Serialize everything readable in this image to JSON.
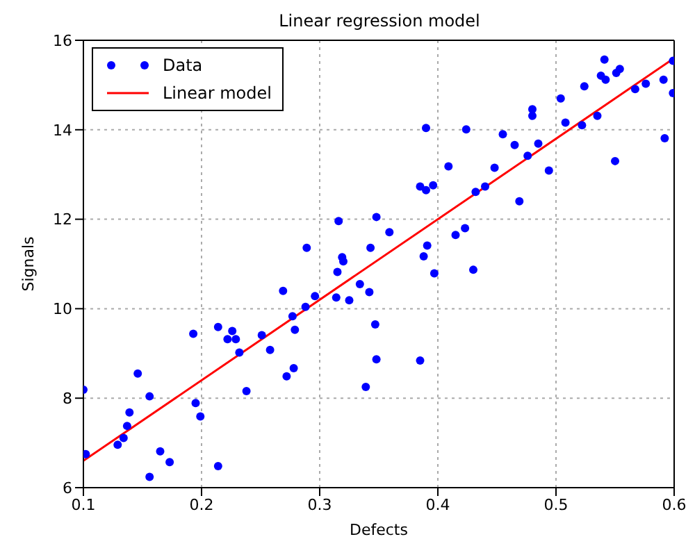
{
  "chart_data": {
    "type": "scatter",
    "title": "Linear regression model",
    "xlabel": "Defects",
    "ylabel": "Signals",
    "xlim": [
      0.1,
      0.6
    ],
    "xticks": [
      0.1,
      0.2,
      0.3,
      0.4,
      0.5,
      0.6
    ],
    "ylim": [
      6,
      16
    ],
    "yticks": [
      6,
      8,
      10,
      12,
      14,
      16
    ],
    "grid": true,
    "legend": "top left",
    "marker": "circle",
    "series": [
      {
        "name": "Data",
        "color": "#0000ff",
        "x": [
          0.1,
          0.102,
          0.129,
          0.134,
          0.137,
          0.139,
          0.146,
          0.156,
          0.156,
          0.165,
          0.173,
          0.193,
          0.195,
          0.199,
          0.214,
          0.214,
          0.222,
          0.226,
          0.229,
          0.232,
          0.238,
          0.251,
          0.258,
          0.269,
          0.272,
          0.277,
          0.278,
          0.279,
          0.288,
          0.289,
          0.296,
          0.316,
          0.314,
          0.315,
          0.319,
          0.32,
          0.325,
          0.334,
          0.339,
          0.342,
          0.343,
          0.347,
          0.348,
          0.385,
          0.385,
          0.39,
          0.396,
          0.39,
          0.409,
          0.424,
          0.348,
          0.359,
          0.388,
          0.391,
          0.397,
          0.415,
          0.423,
          0.43,
          0.432,
          0.44,
          0.448,
          0.455,
          0.465,
          0.469,
          0.476,
          0.48,
          0.48,
          0.485,
          0.494,
          0.504,
          0.508,
          0.522,
          0.524,
          0.535,
          0.538,
          0.541,
          0.542,
          0.55,
          0.551,
          0.554,
          0.567,
          0.576,
          0.591,
          0.592,
          0.599,
          0.599
        ],
        "values": [
          8.19,
          6.75,
          6.96,
          7.11,
          7.38,
          7.68,
          8.55,
          8.04,
          6.24,
          6.81,
          6.57,
          9.44,
          7.89,
          7.59,
          9.59,
          6.48,
          9.32,
          9.5,
          9.32,
          9.02,
          8.16,
          9.41,
          9.08,
          10.4,
          8.49,
          9.83,
          8.67,
          9.53,
          10.04,
          11.36,
          10.28,
          11.96,
          10.25,
          10.82,
          11.15,
          11.06,
          10.19,
          10.55,
          8.25,
          10.37,
          11.36,
          9.65,
          8.87,
          8.84,
          12.73,
          12.65,
          12.76,
          14.04,
          13.18,
          14.01,
          12.05,
          11.71,
          11.17,
          11.41,
          10.79,
          11.65,
          11.8,
          10.87,
          12.61,
          12.73,
          13.15,
          13.9,
          13.66,
          12.4,
          13.42,
          14.46,
          14.31,
          13.69,
          13.09,
          14.7,
          14.16,
          14.1,
          14.97,
          14.31,
          15.21,
          15.57,
          15.12,
          13.3,
          15.27,
          15.36,
          14.91,
          15.03,
          15.12,
          13.81,
          15.54,
          14.82
        ]
      },
      {
        "name": "Linear model",
        "type": "line",
        "color": "#ff0000",
        "marker": "none",
        "x": [
          0.1,
          0.6
        ],
        "values": [
          6.6,
          15.6
        ]
      }
    ]
  }
}
